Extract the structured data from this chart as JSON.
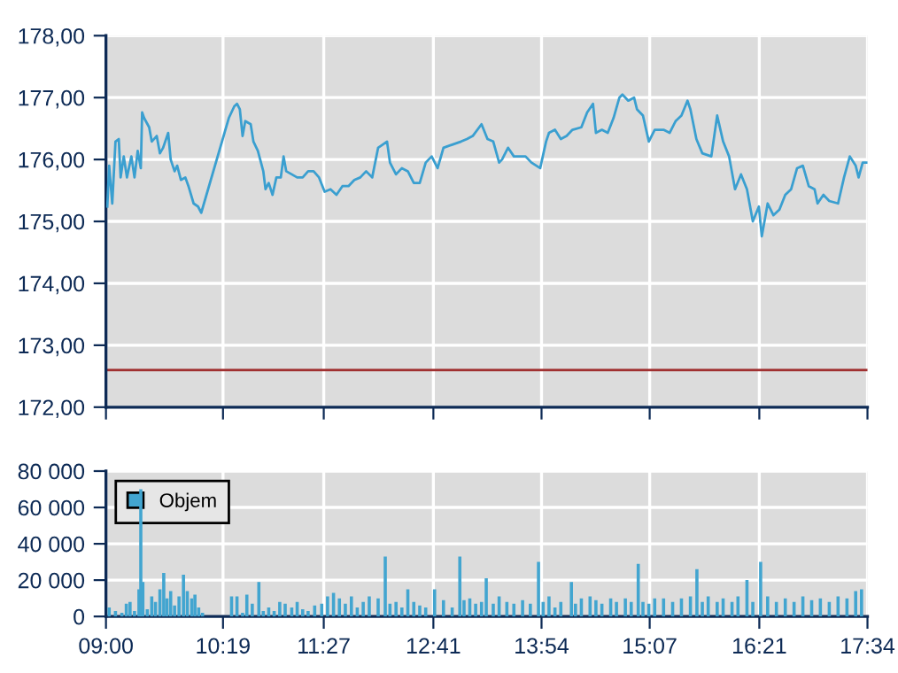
{
  "chart_data": [
    {
      "type": "line",
      "x": [
        9.015,
        9.036,
        9.071,
        9.107,
        9.144,
        9.165,
        9.2,
        9.236,
        9.286,
        9.321,
        9.357,
        9.392,
        9.407,
        9.429,
        9.486,
        9.515,
        9.571,
        9.607,
        9.643,
        9.7,
        9.728,
        9.772,
        9.801,
        9.843,
        9.893,
        9.928,
        9.986,
        10.036,
        10.072,
        10.382,
        10.444,
        10.474,
        10.506,
        10.537,
        10.567,
        10.628,
        10.659,
        10.709,
        10.77,
        10.795,
        10.831,
        10.874,
        10.917,
        10.967,
        10.998,
        11.028,
        11.09,
        11.151,
        11.213,
        11.274,
        11.336,
        11.397,
        11.46,
        11.526,
        11.593,
        11.66,
        11.728,
        11.794,
        11.861,
        11.927,
        11.995,
        12.062,
        12.162,
        12.195,
        12.263,
        12.329,
        12.396,
        12.463,
        12.53,
        12.597,
        12.664,
        12.731,
        12.797,
        12.895,
        12.995,
        13.061,
        13.126,
        13.225,
        13.292,
        13.357,
        13.423,
        13.456,
        13.523,
        13.589,
        13.72,
        13.787,
        13.885,
        13.951,
        13.984,
        14.051,
        14.117,
        14.182,
        14.248,
        14.348,
        14.413,
        14.479,
        14.512,
        14.579,
        14.645,
        14.71,
        14.776,
        14.81,
        14.876,
        14.941,
        14.974,
        15.041,
        15.107,
        15.173,
        15.273,
        15.341,
        15.408,
        15.474,
        15.542,
        15.575,
        15.642,
        15.709,
        15.81,
        15.876,
        15.943,
        16.01,
        16.077,
        16.144,
        16.211,
        16.277,
        16.345,
        16.378,
        16.444,
        16.509,
        16.576,
        16.642,
        16.708,
        16.775,
        16.84,
        16.906,
        16.972,
        17.005,
        17.071,
        17.137,
        17.236,
        17.303,
        17.368,
        17.434,
        17.467,
        17.513,
        17.5667
      ],
      "series": [
        {
          "color": "#3a9fd0",
          "values": [
            175.24,
            175.9,
            175.29,
            176.29,
            176.33,
            175.71,
            176.05,
            175.71,
            176.05,
            175.71,
            176.14,
            175.86,
            176.76,
            176.67,
            176.52,
            176.29,
            176.38,
            176.1,
            176.19,
            176.43,
            176.0,
            175.81,
            175.9,
            175.67,
            175.71,
            175.57,
            175.29,
            175.24,
            175.14,
            176.67,
            176.86,
            176.9,
            176.81,
            176.38,
            176.62,
            176.57,
            176.29,
            176.14,
            175.81,
            175.52,
            175.62,
            175.43,
            175.71,
            175.71,
            176.05,
            175.81,
            175.76,
            175.71,
            175.71,
            175.81,
            175.81,
            175.71,
            175.48,
            175.52,
            175.43,
            175.57,
            175.57,
            175.67,
            175.71,
            175.81,
            175.71,
            176.19,
            176.29,
            175.95,
            175.76,
            175.86,
            175.81,
            175.62,
            175.62,
            175.95,
            176.05,
            175.86,
            176.19,
            176.24,
            176.29,
            176.33,
            176.38,
            176.57,
            176.33,
            176.29,
            175.95,
            176.0,
            176.19,
            176.05,
            176.05,
            175.95,
            175.86,
            176.29,
            176.43,
            176.48,
            176.33,
            176.38,
            176.48,
            176.52,
            176.76,
            176.9,
            176.43,
            176.48,
            176.43,
            176.67,
            177.0,
            177.05,
            176.95,
            177.0,
            176.81,
            176.71,
            176.29,
            176.48,
            176.48,
            176.43,
            176.62,
            176.71,
            176.95,
            176.81,
            176.33,
            176.1,
            176.05,
            176.71,
            176.29,
            176.05,
            175.52,
            175.76,
            175.52,
            175.0,
            175.24,
            174.76,
            175.29,
            175.1,
            175.19,
            175.43,
            175.52,
            175.86,
            175.9,
            175.57,
            175.52,
            175.29,
            175.43,
            175.33,
            175.29,
            175.71,
            176.05,
            175.9,
            175.71,
            175.95,
            175.95
          ]
        }
      ],
      "xlim": [
        9,
        17.5667
      ],
      "xticks": [
        9,
        10.3167,
        11.45,
        12.6833,
        13.9,
        15.1167,
        16.35,
        17.5667
      ],
      "ylim": [
        172,
        178
      ],
      "yticks": [
        {
          "value": 172,
          "label": "172,00"
        },
        {
          "value": 173,
          "label": "173,00"
        },
        {
          "value": 174,
          "label": "174,00"
        },
        {
          "value": 175,
          "label": "175,00"
        },
        {
          "value": 176,
          "label": "176,00"
        },
        {
          "value": 177,
          "label": "177,00"
        },
        {
          "value": 178,
          "label": "178,00"
        }
      ],
      "ref_lines": [
        {
          "axis": "y",
          "value": 172.6,
          "color": "#a03030"
        }
      ],
      "grid": true,
      "tick_labels": "y",
      "marker": "none",
      "line_style": "solid"
    },
    {
      "type": "bar",
      "x": [
        9.036,
        9.107,
        9.179,
        9.229,
        9.271,
        9.321,
        9.371,
        9.392,
        9.415,
        9.465,
        9.515,
        9.557,
        9.607,
        9.65,
        9.686,
        9.728,
        9.772,
        9.822,
        9.872,
        9.915,
        9.965,
        10.001,
        10.043,
        10.086,
        10.413,
        10.474,
        10.537,
        10.585,
        10.646,
        10.72,
        10.77,
        10.831,
        10.892,
        10.955,
        11.016,
        11.09,
        11.151,
        11.213,
        11.274,
        11.348,
        11.427,
        11.493,
        11.56,
        11.626,
        11.693,
        11.761,
        11.827,
        11.894,
        11.962,
        12.062,
        12.142,
        12.195,
        12.263,
        12.329,
        12.396,
        12.463,
        12.53,
        12.597,
        12.697,
        12.797,
        12.895,
        12.981,
        13.028,
        13.093,
        13.159,
        13.225,
        13.278,
        13.357,
        13.423,
        13.51,
        13.589,
        13.687,
        13.774,
        13.866,
        13.918,
        13.984,
        14.051,
        14.117,
        14.236,
        14.282,
        14.348,
        14.446,
        14.512,
        14.579,
        14.678,
        14.743,
        14.843,
        14.909,
        14.988,
        15.041,
        15.107,
        15.173,
        15.273,
        15.375,
        15.474,
        15.575,
        15.648,
        15.709,
        15.775,
        15.876,
        15.943,
        16.043,
        16.11,
        16.211,
        16.277,
        16.365,
        16.444,
        16.542,
        16.642,
        16.741,
        16.84,
        16.939,
        17.037,
        17.137,
        17.236,
        17.336,
        17.434,
        17.5
      ],
      "series": [
        {
          "name": "Objem",
          "color": "#42a5d0",
          "values": [
            5000,
            3000,
            2000,
            7000,
            8000,
            3000,
            15000,
            70000,
            19000,
            4000,
            11000,
            8000,
            15000,
            24000,
            10000,
            14000,
            6000,
            11000,
            23000,
            14000,
            10000,
            12000,
            5000,
            2000,
            11000,
            11000,
            2000,
            12000,
            7000,
            19000,
            3000,
            5000,
            3000,
            8000,
            7000,
            5000,
            8000,
            4000,
            3000,
            6000,
            7000,
            11000,
            13000,
            10000,
            7000,
            11000,
            5000,
            8000,
            11000,
            10000,
            33000,
            7000,
            8000,
            5000,
            15000,
            8000,
            6000,
            5000,
            15000,
            9000,
            5000,
            33000,
            9000,
            10000,
            7000,
            8000,
            21000,
            7000,
            11000,
            8000,
            7000,
            9000,
            7000,
            30000,
            8000,
            11000,
            5000,
            8000,
            19000,
            7000,
            10000,
            11000,
            9000,
            7000,
            10000,
            8000,
            10000,
            8000,
            29000,
            8000,
            7000,
            10000,
            10000,
            8000,
            10000,
            11000,
            26000,
            8000,
            11000,
            8000,
            10000,
            8000,
            11000,
            20000,
            8000,
            30000,
            11000,
            8000,
            10000,
            8000,
            11000,
            9000,
            10000,
            8000,
            11000,
            10000,
            14000,
            15000
          ]
        }
      ],
      "xlim": [
        9,
        17.5667
      ],
      "xticks": [
        {
          "value": 9,
          "label": "09:00"
        },
        {
          "value": 10.3167,
          "label": "10:19"
        },
        {
          "value": 11.45,
          "label": "11:27"
        },
        {
          "value": 12.6833,
          "label": "12:41"
        },
        {
          "value": 13.9,
          "label": "13:54"
        },
        {
          "value": 15.1167,
          "label": "15:07"
        },
        {
          "value": 16.35,
          "label": "16:21"
        },
        {
          "value": 17.5667,
          "label": "17:34"
        }
      ],
      "ylim": [
        0,
        80000
      ],
      "yticks": [
        0,
        {
          "value": 20000,
          "label": "20 000"
        },
        {
          "value": 40000,
          "label": "40 000"
        },
        {
          "value": 60000,
          "label": "60 000"
        },
        {
          "value": 80000,
          "label": "80 000"
        }
      ],
      "grid": true,
      "legend": "top left"
    }
  ]
}
